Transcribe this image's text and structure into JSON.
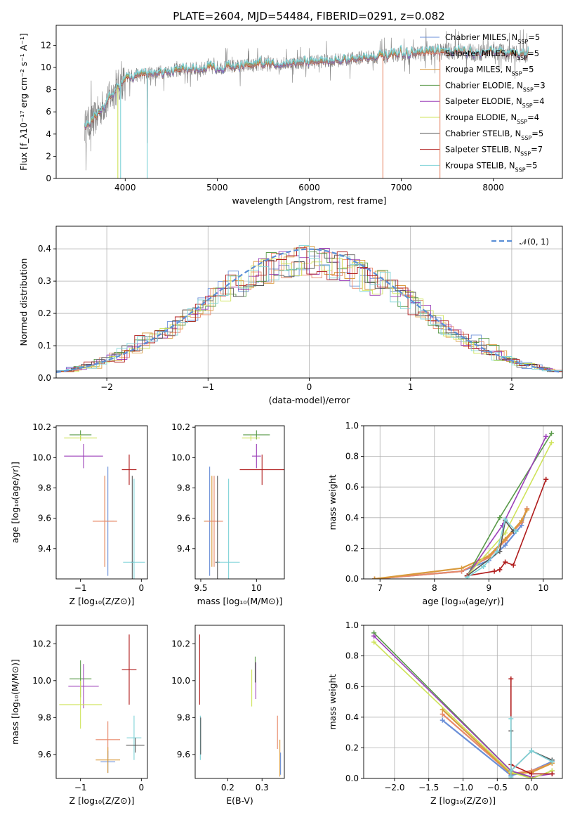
{
  "figure": {
    "title": "PLATE=2604, MJD=54484, FIBERID=0291, z=0.082"
  },
  "colors": {
    "chabrier_miles": "#6a8fd8",
    "salpeter_miles": "#e8896a",
    "kroupa_miles": "#d99a3c",
    "chabrier_elodie": "#5a9a4a",
    "salpeter_elodie": "#9b3fb8",
    "kroupa_elodie": "#cfe35a",
    "chabrier_stelib": "#555555",
    "salpeter_stelib": "#b01c1c",
    "kroupa_stelib": "#7fd3d8",
    "normal": "#5b8fd6",
    "data": "#808080"
  },
  "chart_data": [
    {
      "id": "spectrum",
      "type": "line",
      "xlabel": "wavelength [Angstrom, rest frame]",
      "ylabel": "Flux [f_λ10^-17 erg cm^-2 s^-1 A^-1]",
      "xlim": [
        3250,
        8750
      ],
      "ylim": [
        0,
        13.8
      ],
      "xticks": [
        4000,
        5000,
        6000,
        7000,
        8000
      ],
      "yticks": [
        0,
        2,
        4,
        6,
        8,
        10,
        12
      ],
      "legend_position": "top-right",
      "series": [
        {
          "name": "Chabrier MILES, N_SSP=5",
          "key": "chabrier_miles"
        },
        {
          "name": "Salpeter MILES, N_SSP=5",
          "key": "salpeter_miles"
        },
        {
          "name": "Kroupa MILES, N_SSP=5",
          "key": "kroupa_miles"
        },
        {
          "name": "Chabrier ELODIE, N_SSP=3",
          "key": "chabrier_elodie"
        },
        {
          "name": "Salpeter ELODIE, N_SSP=4",
          "key": "salpeter_elodie"
        },
        {
          "name": "Kroupa ELODIE, N_SSP=4",
          "key": "kroupa_elodie"
        },
        {
          "name": "Chabrier STELIB, N_SSP=5",
          "key": "chabrier_stelib"
        },
        {
          "name": "Salpeter STELIB, N_SSP=7",
          "key": "salpeter_stelib"
        },
        {
          "name": "Kroupa STELIB, N_SSP=5",
          "key": "kroupa_stelib"
        }
      ],
      "continuum": {
        "x": [
          3550,
          3650,
          3750,
          3850,
          3950,
          4050,
          4200,
          4400,
          4600,
          4800,
          5000,
          5200,
          5400,
          5600,
          5800,
          6000,
          6200,
          6400,
          6600,
          6800,
          7000,
          7200,
          7400,
          7600,
          7800,
          8000,
          8200,
          8400
        ],
        "y": [
          4.6,
          5.2,
          6.4,
          7.5,
          8.5,
          9.2,
          9.4,
          9.6,
          9.8,
          9.9,
          10.0,
          10.1,
          10.2,
          10.3,
          10.4,
          10.5,
          10.6,
          10.7,
          10.9,
          11.0,
          11.2,
          11.3,
          11.4,
          11.5,
          11.3,
          11.5,
          11.2,
          11.2
        ]
      }
    },
    {
      "id": "residuals",
      "type": "line",
      "xlabel": "(data-model)/error",
      "ylabel": "Normed distribution",
      "xlim": [
        -2.5,
        2.5
      ],
      "ylim": [
        0,
        0.47
      ],
      "xticks": [
        -2,
        -1,
        0,
        1,
        2
      ],
      "yticks": [
        0.0,
        0.1,
        0.2,
        0.3,
        0.4
      ],
      "grid": true,
      "legend_position": "top-right",
      "normal_label": "𝒩(0, 1)",
      "normal": {
        "mu": 0,
        "sigma": 1
      }
    },
    {
      "id": "age_vs_Z",
      "type": "scatter",
      "xlabel": "Z [log10(Z/Z⊙)]",
      "ylabel": "age  [log10(age/yr)]",
      "xlim": [
        -1.4,
        0.1
      ],
      "ylim": [
        9.2,
        10.21
      ],
      "xticks": [
        -1,
        0
      ],
      "yticks": [
        9.4,
        9.6,
        9.8,
        10.0,
        10.2
      ],
      "points": [
        {
          "key": "chabrier_elodie",
          "x": -1.0,
          "xerr": 0.18,
          "y": 10.15,
          "yerr": 0.03
        },
        {
          "key": "kroupa_elodie",
          "x": -1.0,
          "xerr": 0.27,
          "y": 10.13,
          "yerr": 0.02
        },
        {
          "key": "salpeter_elodie",
          "x": -0.95,
          "xerr": 0.32,
          "y": 10.01,
          "yerr": 0.08
        },
        {
          "key": "chabrier_miles",
          "x": -0.55,
          "xerr": 0.1,
          "y": 9.58,
          "yerr": 0.36
        },
        {
          "key": "kroupa_miles",
          "x": -0.6,
          "xerr": 0.2,
          "y": 9.58,
          "yerr": 0.3
        },
        {
          "key": "salpeter_miles",
          "x": -0.6,
          "xerr": 0.2,
          "y": 9.58,
          "yerr": 0.3
        },
        {
          "key": "salpeter_stelib",
          "x": -0.2,
          "xerr": 0.12,
          "y": 9.92,
          "yerr": 0.1
        },
        {
          "key": "chabrier_stelib",
          "x": -0.15,
          "xerr": 0.02,
          "y": 9.31,
          "yerr": 0.57
        },
        {
          "key": "kroupa_stelib",
          "x": -0.12,
          "xerr": 0.18,
          "y": 9.31,
          "yerr": 0.55
        }
      ]
    },
    {
      "id": "age_vs_mass",
      "type": "scatter",
      "xlabel": "mass [log10(M/M⊙)]",
      "ylabel": "",
      "xlim": [
        9.45,
        10.25
      ],
      "ylim": [
        9.2,
        10.21
      ],
      "xticks": [
        9.5,
        10.0
      ],
      "yticks": [
        9.4,
        9.6,
        9.8,
        10.0,
        10.2
      ],
      "points": [
        {
          "key": "chabrier_elodie",
          "x": 10.0,
          "xerr": 0.12,
          "y": 10.15,
          "yerr": 0.03
        },
        {
          "key": "kroupa_elodie",
          "x": 9.95,
          "xerr": 0.08,
          "y": 10.13,
          "yerr": 0.02
        },
        {
          "key": "salpeter_elodie",
          "x": 10.0,
          "xerr": 0.04,
          "y": 10.01,
          "yerr": 0.08
        },
        {
          "key": "salpeter_stelib",
          "x": 10.05,
          "xerr": 0.2,
          "y": 9.92,
          "yerr": 0.1
        },
        {
          "key": "chabrier_miles",
          "x": 9.58,
          "xerr": 0.05,
          "y": 9.58,
          "yerr": 0.36
        },
        {
          "key": "kroupa_miles",
          "x": 9.6,
          "xerr": 0.07,
          "y": 9.58,
          "yerr": 0.3
        },
        {
          "key": "salpeter_miles",
          "x": 9.62,
          "xerr": 0.08,
          "y": 9.58,
          "yerr": 0.3
        },
        {
          "key": "chabrier_stelib",
          "x": 9.65,
          "xerr": 0.02,
          "y": 9.31,
          "yerr": 0.57
        },
        {
          "key": "kroupa_stelib",
          "x": 9.75,
          "xerr": 0.1,
          "y": 9.31,
          "yerr": 0.55
        }
      ]
    },
    {
      "id": "mass_weight_vs_age",
      "type": "line",
      "xlabel": "age  [log10(age/yr)]",
      "ylabel": "mass weight",
      "xlim": [
        6.7,
        10.35
      ],
      "ylim": [
        0,
        1.0
      ],
      "xticks": [
        7,
        8,
        9,
        10
      ],
      "yticks": [
        0.0,
        0.2,
        0.4,
        0.6,
        0.8,
        1.0
      ],
      "grid": true,
      "series": [
        {
          "key": "chabrier_miles",
          "x": [
            6.9,
            8.5,
            9.0,
            9.3,
            9.6,
            9.7
          ],
          "y": [
            0.0,
            0.05,
            0.12,
            0.22,
            0.35,
            0.46
          ]
        },
        {
          "key": "salpeter_miles",
          "x": [
            6.9,
            8.5,
            9.0,
            9.3,
            9.6,
            9.7
          ],
          "y": [
            0.0,
            0.05,
            0.14,
            0.25,
            0.37,
            0.46
          ]
        },
        {
          "key": "kroupa_miles",
          "x": [
            6.9,
            8.5,
            9.0,
            9.3,
            9.6,
            9.7
          ],
          "y": [
            0.0,
            0.07,
            0.15,
            0.26,
            0.38,
            0.45
          ]
        },
        {
          "key": "chabrier_elodie",
          "x": [
            8.6,
            9.2,
            10.15
          ],
          "y": [
            0.02,
            0.4,
            0.95
          ]
        },
        {
          "key": "salpeter_elodie",
          "x": [
            8.6,
            9.25,
            10.05
          ],
          "y": [
            0.02,
            0.35,
            0.93
          ]
        },
        {
          "key": "kroupa_elodie",
          "x": [
            8.6,
            9.3,
            10.15
          ],
          "y": [
            0.02,
            0.3,
            0.89
          ]
        },
        {
          "key": "chabrier_stelib",
          "x": [
            8.6,
            9.2,
            9.3,
            9.45
          ],
          "y": [
            0.02,
            0.18,
            0.38,
            0.31
          ]
        },
        {
          "key": "salpeter_stelib",
          "x": [
            8.6,
            9.1,
            9.2,
            9.3,
            9.45,
            10.05
          ],
          "y": [
            0.02,
            0.05,
            0.06,
            0.11,
            0.09,
            0.65
          ]
        },
        {
          "key": "kroupa_stelib",
          "x": [
            8.6,
            8.9,
            9.15,
            9.3,
            9.5
          ],
          "y": [
            0.01,
            0.08,
            0.18,
            0.39,
            0.31
          ]
        }
      ]
    },
    {
      "id": "mass_vs_Z",
      "type": "scatter",
      "xlabel": "Z [log10(Z/Z⊙)]",
      "ylabel": "mass [log10(M/M⊙)]",
      "xlim": [
        -1.4,
        0.1
      ],
      "ylim": [
        9.47,
        10.3
      ],
      "xticks": [
        -1,
        0
      ],
      "yticks": [
        9.6,
        9.8,
        10.0,
        10.2
      ],
      "points": [
        {
          "key": "chabrier_elodie",
          "x": -1.0,
          "xerr": 0.18,
          "y": 10.01,
          "yerr": 0.1
        },
        {
          "key": "salpeter_elodie",
          "x": -0.95,
          "xerr": 0.25,
          "y": 9.97,
          "yerr": 0.12
        },
        {
          "key": "kroupa_elodie",
          "x": -1.0,
          "xerr": 0.35,
          "y": 9.87,
          "yerr": 0.13
        },
        {
          "key": "salpeter_stelib",
          "x": -0.2,
          "xerr": 0.12,
          "y": 10.06,
          "yerr": 0.19
        },
        {
          "key": "salpeter_miles",
          "x": -0.55,
          "xerr": 0.2,
          "y": 9.68,
          "yerr": 0.1
        },
        {
          "key": "chabrier_miles",
          "x": -0.55,
          "xerr": 0.12,
          "y": 9.56,
          "yerr": 0.06
        },
        {
          "key": "kroupa_miles",
          "x": -0.55,
          "xerr": 0.2,
          "y": 9.57,
          "yerr": 0.07
        },
        {
          "key": "kroupa_stelib",
          "x": -0.12,
          "xerr": 0.12,
          "y": 9.69,
          "yerr": 0.12
        },
        {
          "key": "chabrier_stelib",
          "x": -0.1,
          "xerr": 0.15,
          "y": 9.65,
          "yerr": 0.04
        }
      ]
    },
    {
      "id": "mass_vs_ebv",
      "type": "scatter",
      "xlabel": "E(B-V)",
      "ylabel": "",
      "xlim": [
        0.105,
        0.365
      ],
      "ylim": [
        9.47,
        10.3
      ],
      "xticks": [
        0.2,
        0.3
      ],
      "yticks": [
        9.6,
        9.8,
        10.0,
        10.2
      ],
      "points": [
        {
          "key": "salpeter_stelib",
          "x": 0.118,
          "xerr": 0.0,
          "y": 10.06,
          "yerr": 0.19
        },
        {
          "key": "kroupa_stelib",
          "x": 0.12,
          "xerr": 0.0,
          "y": 9.69,
          "yerr": 0.12
        },
        {
          "key": "chabrier_stelib",
          "x": 0.121,
          "xerr": 0.0,
          "y": 9.7,
          "yerr": 0.1
        },
        {
          "key": "kroupa_elodie",
          "x": 0.27,
          "xerr": 0.0,
          "y": 9.96,
          "yerr": 0.1
        },
        {
          "key": "chabrier_elodie",
          "x": 0.28,
          "xerr": 0.0,
          "y": 10.06,
          "yerr": 0.07
        },
        {
          "key": "salpeter_elodie",
          "x": 0.282,
          "xerr": 0.0,
          "y": 10.0,
          "yerr": 0.1
        },
        {
          "key": "salpeter_miles",
          "x": 0.345,
          "xerr": 0.0,
          "y": 9.72,
          "yerr": 0.09
        },
        {
          "key": "kroupa_miles",
          "x": 0.352,
          "xerr": 0.0,
          "y": 9.58,
          "yerr": 0.1
        },
        {
          "key": "chabrier_miles",
          "x": 0.354,
          "xerr": 0.0,
          "y": 9.55,
          "yerr": 0.06
        }
      ]
    },
    {
      "id": "mass_weight_vs_Z",
      "type": "line",
      "xlabel": "Z [log10(Z/Z⊙)]",
      "ylabel": "mass weight",
      "xlim": [
        -2.45,
        0.45
      ],
      "ylim": [
        0,
        1.0
      ],
      "xticks": [
        -2.0,
        -1.5,
        -1.0,
        -0.5,
        0.0
      ],
      "yticks": [
        0.0,
        0.2,
        0.4,
        0.6,
        0.8,
        1.0
      ],
      "grid": true,
      "series": [
        {
          "key": "chabrier_miles",
          "x": [
            -1.3,
            -0.3,
            0.0,
            0.3
          ],
          "y": [
            0.38,
            0.02,
            0.05,
            0.11
          ]
        },
        {
          "key": "salpeter_miles",
          "x": [
            -1.3,
            -0.3,
            0.0,
            0.3
          ],
          "y": [
            0.42,
            0.03,
            0.05,
            0.1
          ]
        },
        {
          "key": "kroupa_miles",
          "x": [
            -1.3,
            -0.3,
            0.0,
            0.3
          ],
          "y": [
            0.45,
            0.03,
            0.04,
            0.1
          ]
        },
        {
          "key": "chabrier_elodie",
          "x": [
            -2.3,
            -0.3,
            0.0,
            0.3
          ],
          "y": [
            0.95,
            0.05,
            0.0,
            0.05
          ]
        },
        {
          "key": "salpeter_elodie",
          "x": [
            -2.3,
            -0.3,
            0.0,
            0.3
          ],
          "y": [
            0.93,
            0.05,
            0.01,
            0.03
          ]
        },
        {
          "key": "kroupa_elodie",
          "x": [
            -2.3,
            -0.3,
            0.0,
            0.3
          ],
          "y": [
            0.89,
            0.04,
            0.0,
            0.05
          ]
        },
        {
          "key": "chabrier_stelib",
          "x": [
            -0.3,
            -0.3,
            -0.3,
            0.0,
            0.3
          ],
          "y": [
            0.0,
            0.31,
            0.05,
            0.18,
            0.12
          ]
        },
        {
          "key": "salpeter_stelib",
          "x": [
            -0.3,
            -0.3,
            -0.3,
            0.0,
            0.3
          ],
          "y": [
            0.05,
            0.65,
            0.09,
            0.03,
            0.03
          ]
        },
        {
          "key": "kroupa_stelib",
          "x": [
            -0.3,
            -0.3,
            -0.3,
            0.0,
            0.3
          ],
          "y": [
            0.01,
            0.39,
            0.05,
            0.18,
            0.11
          ]
        }
      ]
    }
  ]
}
